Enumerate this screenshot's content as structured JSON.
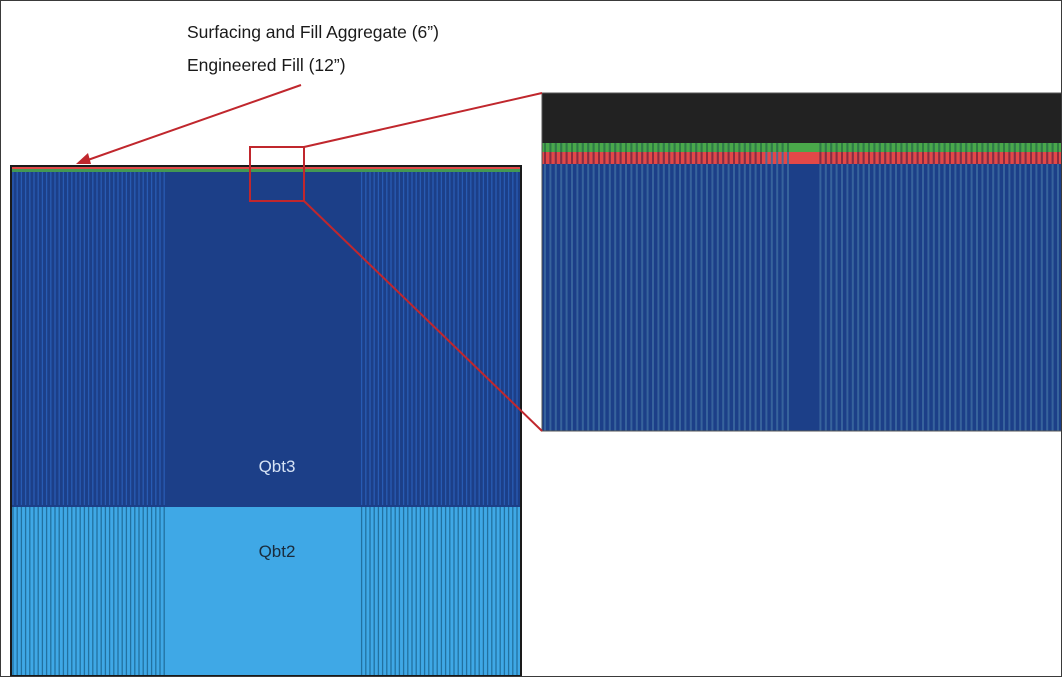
{
  "annotations": {
    "line1": "Surfacing and Fill Aggregate (6”)",
    "line2": "Engineered Fill (12”)"
  },
  "units": [
    {
      "name": "Qbt3",
      "color": "#1c3f88",
      "stripe_color": "#2a5fb8",
      "text_color": "#d5e2f5"
    },
    {
      "name": "Qbt2",
      "color": "#3fa8e6",
      "stripe_color": "#1f6c99",
      "text_color": "#1a2b3c"
    }
  ],
  "surface_layers": [
    {
      "name": "Surfacing and Fill Aggregate",
      "thickness": "6”",
      "color": "#4aa84a"
    },
    {
      "name": "Engineered Fill",
      "thickness": "12”",
      "color": "#e24848"
    }
  ],
  "colors": {
    "callout": "#c0272d",
    "sky": "#222222",
    "outline": "#1a1a1a"
  }
}
